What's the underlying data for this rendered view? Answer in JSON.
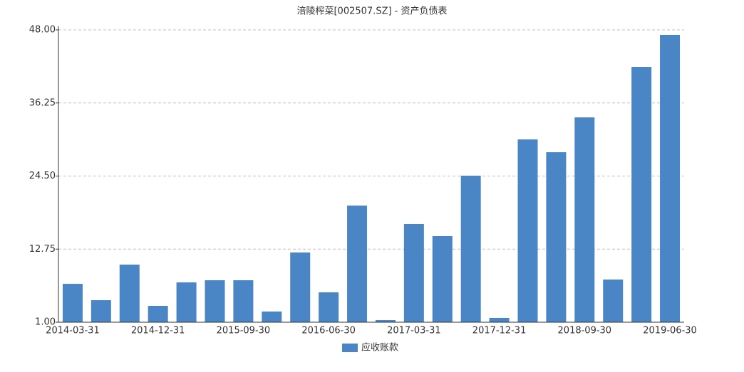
{
  "chart_data": {
    "type": "bar",
    "title": "涪陵榨菜[002507.SZ] - 资产负债表",
    "categories": [
      "2014-03-31",
      null,
      null,
      "2014-12-31",
      null,
      null,
      "2015-09-30",
      null,
      null,
      "2016-06-30",
      null,
      null,
      "2017-03-31",
      null,
      null,
      "2017-12-31",
      null,
      null,
      "2018-09-30",
      null,
      null,
      "2019-06-30"
    ],
    "series": [
      {
        "name": "应收账款",
        "color": "#4a85c6",
        "values": [
          7.17,
          4.54,
          10.26,
          3.63,
          7.4,
          7.75,
          7.75,
          2.72,
          12.21,
          5.8,
          19.75,
          1.34,
          16.78,
          14.84,
          24.56,
          1.69,
          30.39,
          28.33,
          33.93,
          7.86,
          42.05,
          47.2
        ]
      }
    ],
    "ylim": [
      1,
      48
    ],
    "yticks": [
      {
        "value": 1,
        "label": "1.00"
      },
      {
        "value": 12.75,
        "label": "12.75"
      },
      {
        "value": 24.5,
        "label": "24.50"
      },
      {
        "value": 36.25,
        "label": "36.25"
      },
      {
        "value": 48,
        "label": "48.00"
      }
    ],
    "grid": true,
    "legend": "bottom"
  }
}
